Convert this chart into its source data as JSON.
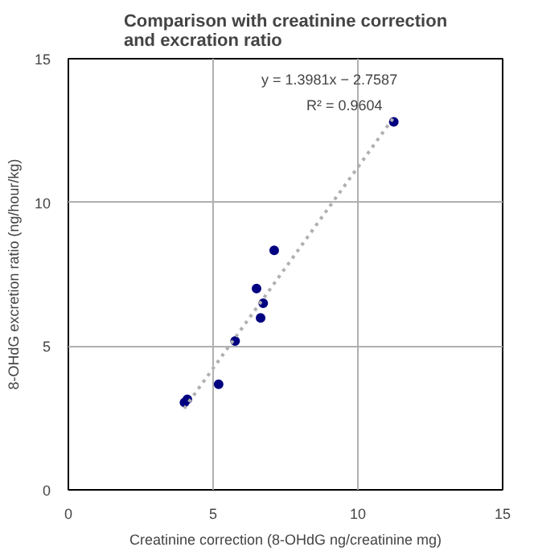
{
  "chart_data": {
    "type": "scatter",
    "title": "Comparison with creatinine correction\nand excration ratio",
    "xlabel": "Creatinine correction (8-OHdG ng/creatinine mg)",
    "ylabel": "8-OHdG excretion ratio (ng/hour/kg)",
    "series": [
      {
        "color": "#000080",
        "marker": "circle",
        "x": [
          7.11,
          6.5,
          6.73,
          6.64,
          5.76,
          5.19,
          4.01,
          4.11,
          11.24
        ],
        "values": [
          8.33,
          7.0,
          6.49,
          5.98,
          5.18,
          3.67,
          3.04,
          3.15,
          12.8
        ]
      },
      {
        "type": "line",
        "color": "#b0b0b0",
        "line_style": "dotted",
        "x": [
          4.0,
          11.24
        ],
        "values": [
          2.83,
          12.96
        ]
      }
    ],
    "annotations": [
      "y = 1.3981x − 2.7587",
      "R² = 0.9604"
    ],
    "xlim": [
      0,
      15
    ],
    "ylim": [
      0,
      15
    ],
    "xticks": [
      0,
      5,
      10,
      15
    ],
    "yticks": [
      0,
      5,
      10,
      15
    ],
    "grid": true
  }
}
